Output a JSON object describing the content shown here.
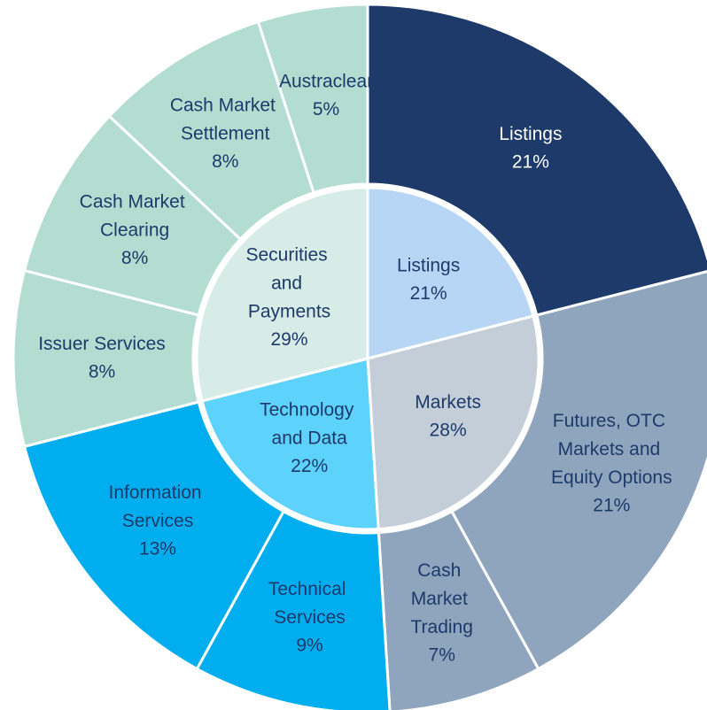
{
  "chart_data": {
    "type": "sunburst",
    "inner": {
      "categories": [
        "Listings",
        "Markets",
        "Technology and Data",
        "Securities and Payments"
      ],
      "values": [
        21,
        28,
        22,
        29
      ],
      "value_labels": [
        "21%",
        "28%",
        "22%",
        "29%"
      ],
      "colors": [
        "#b7d6f5",
        "#c3ced8",
        "#5dd2fb",
        "#d7ece6"
      ]
    },
    "outer": {
      "categories": [
        "Listings",
        "Futures, OTC Markets and Equity Options",
        "Cash Market Trading",
        "Technical Services",
        "Information Services",
        "Issuer Services",
        "Cash Market Clearing",
        "Cash Market Settlement",
        "Austraclear"
      ],
      "values": [
        21,
        21,
        7,
        9,
        13,
        8,
        8,
        8,
        5
      ],
      "value_labels": [
        "21%",
        "21%",
        "7%",
        "9%",
        "13%",
        "8%",
        "8%",
        "8%",
        "5%"
      ],
      "colors": [
        "#1d3a6b",
        "#8fa5bd",
        "#8fa5bd",
        "#00aeef",
        "#00aeef",
        "#b3ddd1",
        "#b3ddd1",
        "#b3ddd1",
        "#b3ddd1"
      ]
    }
  }
}
